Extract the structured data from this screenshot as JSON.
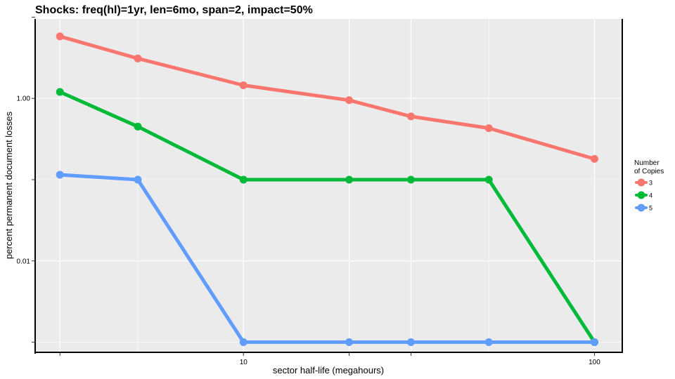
{
  "chart_data": {
    "type": "line",
    "title": "Shocks: freq(hl)=1yr, len=6mo, span=2, impact=50%",
    "xlabel": "sector half-life (megahours)",
    "ylabel": "percent permanent document losses",
    "x_scale": "log",
    "y_scale": "log",
    "xlim": [
      2.55,
      120
    ],
    "ylim": [
      0.00075,
      9.5
    ],
    "x_ticks": [
      {
        "value": 10,
        "label": "10"
      },
      {
        "value": 100,
        "label": "100"
      }
    ],
    "y_ticks": [
      {
        "value": 0.01,
        "label": "0.01"
      },
      {
        "value": 1,
        "label": "1.00"
      }
    ],
    "grid": true,
    "legend": {
      "title": "Number\nof Copies",
      "position": "right"
    },
    "series": [
      {
        "name": "3",
        "color": "#F8766D",
        "x": [
          3,
          5,
          10,
          20,
          30,
          50,
          100
        ],
        "y": [
          5.8,
          3.1,
          1.45,
          0.95,
          0.6,
          0.43,
          0.18
        ]
      },
      {
        "name": "4",
        "color": "#00BA38",
        "x": [
          3,
          5,
          10,
          20,
          30,
          50,
          100
        ],
        "y": [
          1.2,
          0.45,
          0.1,
          0.1,
          0.1,
          0.1,
          0.001
        ]
      },
      {
        "name": "5",
        "color": "#619CFF",
        "x": [
          3,
          5,
          10,
          20,
          30,
          50,
          100
        ],
        "y": [
          0.115,
          0.1,
          0.001,
          0.001,
          0.001,
          0.001,
          0.001
        ]
      }
    ]
  }
}
